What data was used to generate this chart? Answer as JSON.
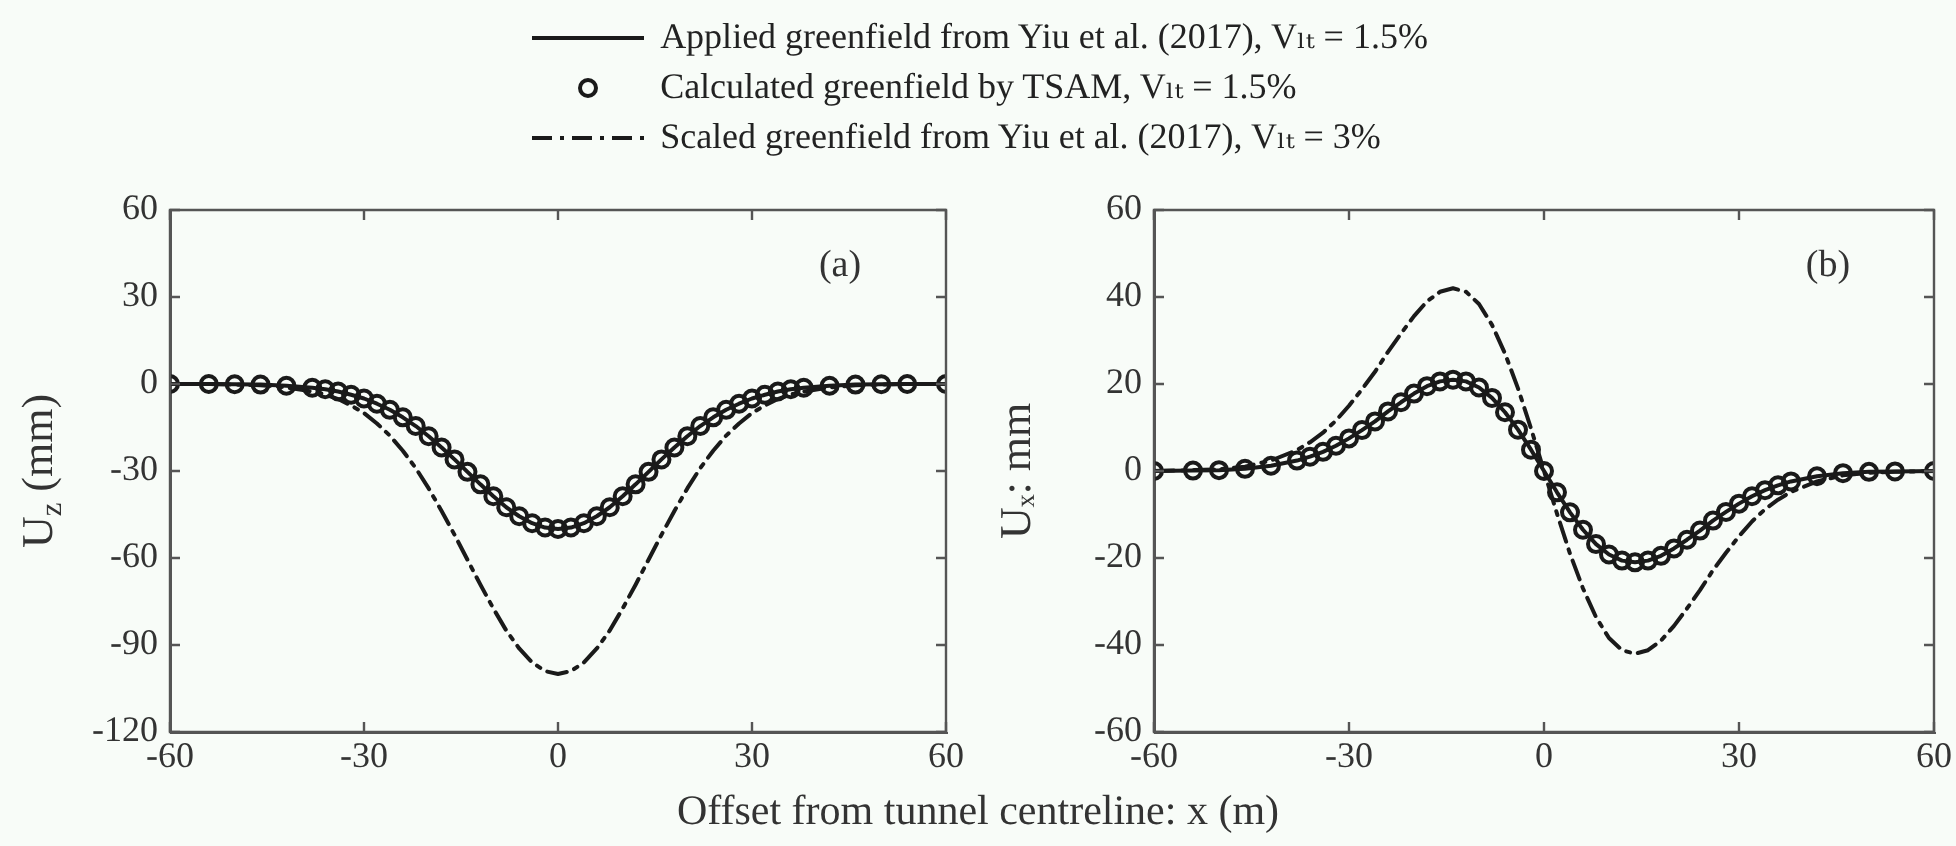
{
  "chart_data": [
    {
      "type": "line",
      "xlabel": "Offset from tunnel centreline: x (m)",
      "ylabel": "U$_{z}$ (mm)",
      "legend": "top",
      "annotations": [
        "(a)"
      ],
      "x": [
        -60,
        -54,
        -50,
        -46,
        -42,
        -38,
        -36,
        -34,
        -32,
        -30,
        -28,
        -26,
        -24,
        -22,
        -20,
        -18,
        -16,
        -14,
        -12,
        -10,
        -8,
        -6,
        -4,
        -2,
        0,
        2,
        4,
        6,
        8,
        10,
        12,
        14,
        16,
        18,
        20,
        22,
        24,
        26,
        28,
        30,
        32,
        34,
        36,
        38,
        42,
        46,
        50,
        54,
        60
      ],
      "xlim": [
        -60,
        60
      ],
      "xticks": [
        -60,
        -30,
        0,
        30,
        60
      ],
      "ylim": [
        -120,
        60
      ],
      "yticks": [
        -120,
        -90,
        -60,
        -30,
        0,
        30,
        60
      ],
      "series": [
        {
          "name": "Applied greenfield from Yiu et al. (2017), Vₗₜ = 1.5%",
          "type": "line",
          "color": "#1a1a1a",
          "line_style": "solid",
          "marker": "none",
          "values": [
            0,
            0,
            -0.1,
            -0.2,
            -0.6,
            -1.3,
            -1.8,
            -2.6,
            -3.7,
            -5.0,
            -6.8,
            -8.9,
            -11.5,
            -14.5,
            -18.0,
            -21.9,
            -26.0,
            -30.3,
            -34.6,
            -38.7,
            -42.5,
            -45.6,
            -48.0,
            -49.5,
            -50,
            -49.5,
            -48.0,
            -45.6,
            -42.5,
            -38.7,
            -34.6,
            -30.3,
            -26.0,
            -21.9,
            -18.0,
            -14.5,
            -11.5,
            -8.9,
            -6.8,
            -5.0,
            -3.7,
            -2.6,
            -1.8,
            -1.3,
            -0.6,
            -0.2,
            -0.1,
            0,
            0
          ]
        },
        {
          "name": "Calculated greenfield by TSAM, Vₗₜ = 1.5%",
          "type": "scatter",
          "color": "#1a1a1a",
          "marker": "circle",
          "values": [
            0,
            0,
            -0.1,
            -0.2,
            -0.6,
            -1.3,
            -1.8,
            -2.6,
            -3.7,
            -5.0,
            -6.8,
            -8.9,
            -11.5,
            -14.5,
            -18.0,
            -21.9,
            -26.0,
            -30.3,
            -34.6,
            -38.7,
            -42.5,
            -45.6,
            -48.0,
            -49.5,
            -50,
            -49.5,
            -48.0,
            -45.6,
            -42.5,
            -38.7,
            -34.6,
            -30.3,
            -26.0,
            -21.9,
            -18.0,
            -14.5,
            -11.5,
            -8.9,
            -6.8,
            -5.0,
            -3.7,
            -2.6,
            -1.8,
            -1.3,
            -0.6,
            -0.2,
            -0.1,
            0,
            0
          ]
        },
        {
          "name": "Scaled greenfield from Yiu et al. (2017), Vₗₜ = 3%",
          "type": "line",
          "color": "#1a1a1a",
          "line_style": "dashed",
          "marker": "none",
          "values": [
            0,
            0,
            -0.2,
            -0.4,
            -1.2,
            -2.6,
            -3.6,
            -5.2,
            -7.4,
            -10.0,
            -13.6,
            -17.8,
            -23.0,
            -29.0,
            -36.0,
            -43.8,
            -52.0,
            -60.6,
            -69.2,
            -77.4,
            -85.0,
            -91.2,
            -96.0,
            -99.0,
            -100,
            -99.0,
            -96.0,
            -91.2,
            -85.0,
            -77.4,
            -69.2,
            -60.6,
            -52.0,
            -43.8,
            -36.0,
            -29.0,
            -23.0,
            -17.8,
            -13.6,
            -10.0,
            -7.4,
            -5.2,
            -3.6,
            -2.6,
            -1.2,
            -0.4,
            -0.2,
            0,
            0
          ]
        }
      ]
    },
    {
      "type": "line",
      "ylabel": "Uₓ: mm",
      "annotations": [
        "(b)"
      ],
      "x": [
        -60,
        -54,
        -50,
        -46,
        -42,
        -38,
        -36,
        -34,
        -32,
        -30,
        -28,
        -26,
        -24,
        -22,
        -20,
        -18,
        -16,
        -14,
        -12,
        -10,
        -8,
        -6,
        -4,
        -2,
        0,
        2,
        4,
        6,
        8,
        10,
        12,
        14,
        16,
        18,
        20,
        22,
        24,
        26,
        28,
        30,
        32,
        34,
        36,
        38,
        42,
        46,
        50,
        54,
        60
      ],
      "xlim": [
        -60,
        60
      ],
      "xticks": [
        -60,
        -30,
        0,
        30,
        60
      ],
      "ylim": [
        -60,
        60
      ],
      "yticks": [
        -60,
        -40,
        -20,
        0,
        20,
        40,
        60
      ],
      "series": [
        {
          "type": "line",
          "color": "#1a1a1a",
          "line_style": "solid",
          "marker": "none",
          "values": [
            0,
            0.1,
            0.2,
            0.5,
            1.2,
            2.4,
            3.3,
            4.4,
            5.8,
            7.5,
            9.4,
            11.4,
            13.7,
            15.8,
            17.8,
            19.5,
            20.6,
            21.0,
            20.6,
            19.2,
            16.8,
            13.5,
            9.5,
            4.9,
            0,
            -4.9,
            -9.5,
            -13.5,
            -16.8,
            -19.2,
            -20.6,
            -21.0,
            -20.6,
            -19.5,
            -17.8,
            -15.8,
            -13.7,
            -11.4,
            -9.4,
            -7.5,
            -5.8,
            -4.4,
            -3.3,
            -2.4,
            -1.2,
            -0.5,
            -0.2,
            -0.1,
            0
          ]
        },
        {
          "type": "scatter",
          "color": "#1a1a1a",
          "marker": "circle",
          "values": [
            0,
            0.1,
            0.2,
            0.5,
            1.2,
            2.4,
            3.3,
            4.4,
            5.8,
            7.5,
            9.4,
            11.4,
            13.7,
            15.8,
            17.8,
            19.5,
            20.6,
            21.0,
            20.6,
            19.2,
            16.8,
            13.5,
            9.5,
            4.9,
            0,
            -4.9,
            -9.5,
            -13.5,
            -16.8,
            -19.2,
            -20.6,
            -21.0,
            -20.6,
            -19.5,
            -17.8,
            -15.8,
            -13.7,
            -11.4,
            -9.4,
            -7.5,
            -5.8,
            -4.4,
            -3.3,
            -2.4,
            -1.2,
            -0.5,
            -0.2,
            -0.1,
            0
          ]
        },
        {
          "type": "line",
          "color": "#1a1a1a",
          "line_style": "dashed",
          "marker": "none",
          "values": [
            0,
            0.2,
            0.4,
            1.0,
            2.4,
            4.8,
            6.6,
            8.8,
            11.6,
            15.0,
            18.8,
            22.8,
            27.4,
            31.6,
            35.6,
            39.0,
            41.2,
            42.0,
            41.2,
            38.4,
            33.6,
            27.0,
            19.0,
            9.8,
            0,
            -9.8,
            -19.0,
            -27.0,
            -33.6,
            -38.4,
            -41.2,
            -42.0,
            -41.2,
            -39.0,
            -35.6,
            -31.6,
            -27.4,
            -22.8,
            -18.8,
            -15.0,
            -11.6,
            -8.8,
            -6.6,
            -4.8,
            -2.4,
            -1.0,
            -0.4,
            -0.2,
            0
          ]
        }
      ]
    }
  ]
}
